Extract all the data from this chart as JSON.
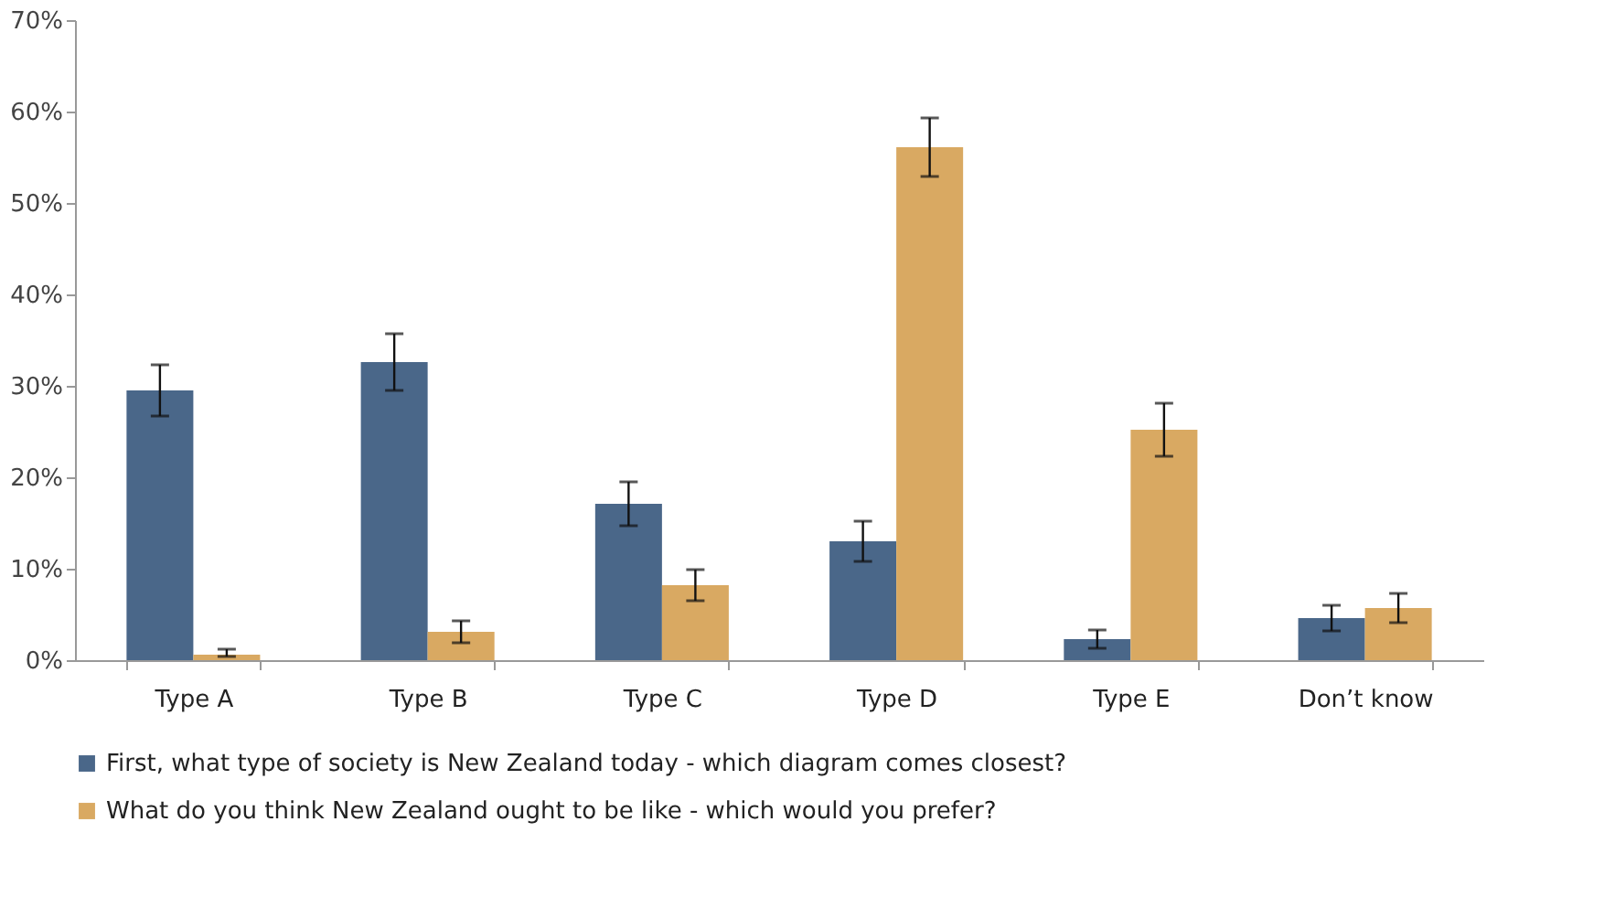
{
  "chart_data": {
    "type": "bar",
    "categories": [
      "Type A",
      "Type B",
      "Type C",
      "Type D",
      "Type E",
      "Don’t know"
    ],
    "series": [
      {
        "name": "First, what type of society is New Zealand today - which diagram comes closest?",
        "color": "#4a6789",
        "values": [
          29.5,
          32.6,
          17.1,
          13.0,
          2.3,
          4.6
        ],
        "errors": [
          2.8,
          3.1,
          2.4,
          2.2,
          1.0,
          1.4
        ]
      },
      {
        "name": "What do you think New Zealand ought to be like - which would you prefer?",
        "color": "#d9a962",
        "values": [
          0.6,
          3.1,
          8.2,
          56.1,
          25.2,
          5.7
        ],
        "errors": [
          [
            0.2,
            0.6
          ],
          1.2,
          1.7,
          3.2,
          2.9,
          1.6
        ]
      }
    ],
    "ylim": [
      0,
      70
    ],
    "yticks": [
      {
        "value": 0,
        "label": "0%"
      },
      {
        "value": 10,
        "label": "10%"
      },
      {
        "value": 20,
        "label": "20%"
      },
      {
        "value": 30,
        "label": "30%"
      },
      {
        "value": 40,
        "label": "40%"
      },
      {
        "value": 50,
        "label": "50%"
      },
      {
        "value": 60,
        "label": "60%"
      },
      {
        "value": 70,
        "label": "70%"
      }
    ],
    "grid": false,
    "legend": "bottom"
  }
}
